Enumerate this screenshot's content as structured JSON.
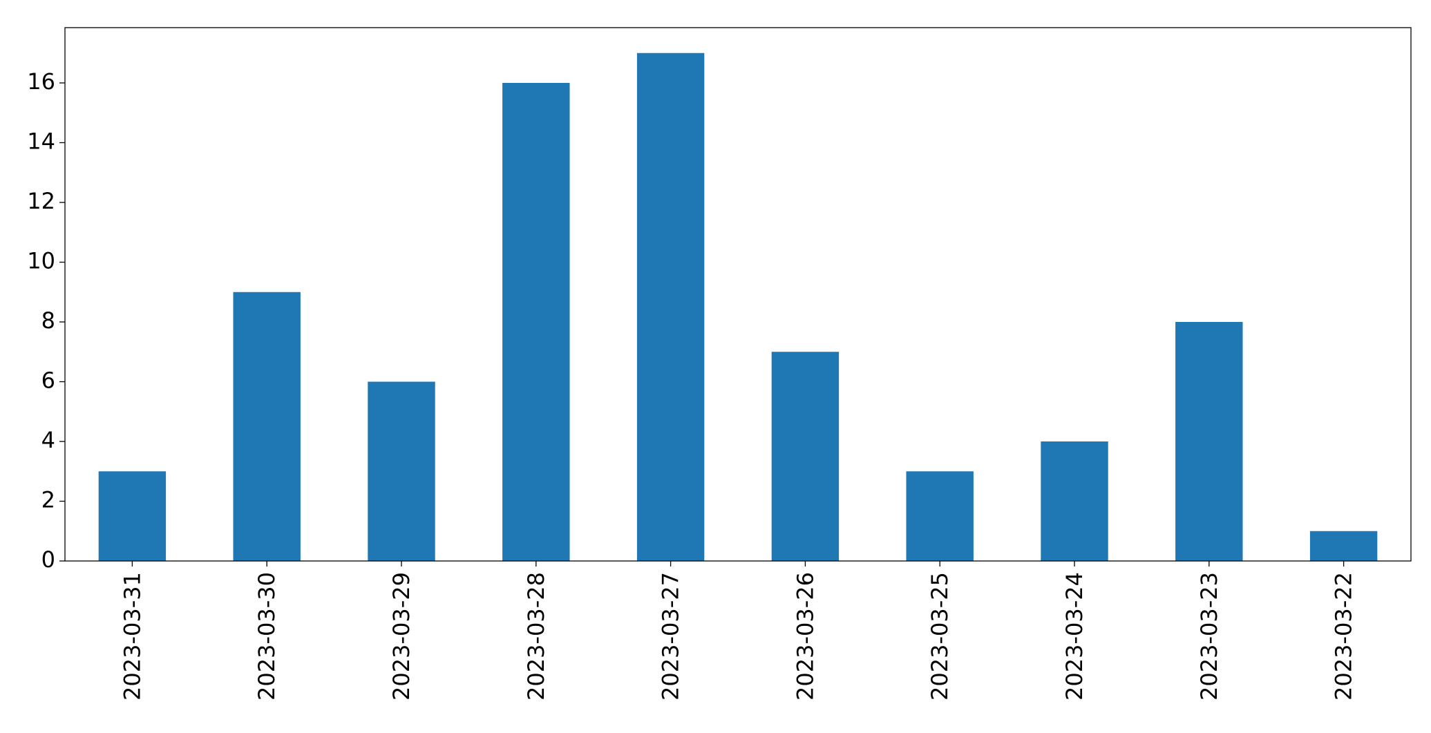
{
  "chart_data": {
    "type": "bar",
    "categories": [
      "2023-03-31",
      "2023-03-30",
      "2023-03-29",
      "2023-03-28",
      "2023-03-27",
      "2023-03-26",
      "2023-03-25",
      "2023-03-24",
      "2023-03-23",
      "2023-03-22"
    ],
    "values": [
      3,
      9,
      6,
      16,
      17,
      7,
      3,
      4,
      8,
      1
    ],
    "color": "#1f77b4",
    "ylim": [
      0,
      17.85
    ],
    "yticks": [
      0,
      2,
      4,
      6,
      8,
      10,
      12,
      14,
      16
    ],
    "grid": false
  }
}
